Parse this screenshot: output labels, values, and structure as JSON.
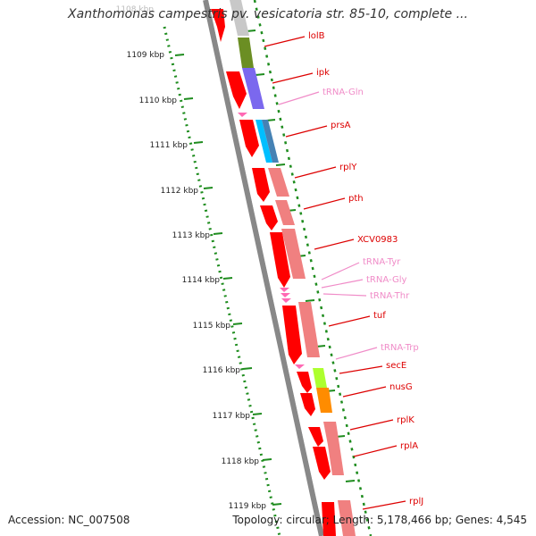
{
  "title": "Xanthomonas campestris pv. vesicatoria str. 85-10, complete ...",
  "footer": {
    "accession": "Accession: NC_007508",
    "summary": "Topology: circular; Length: 5,178,466 bp; Genes: 4,545"
  },
  "colors": {
    "scale_dots": "#1e8c1e",
    "backbone": "#808080",
    "cds_forward": "#ff0000",
    "cds_reverse": "#f08080",
    "gene_label": "#dd0000",
    "trna_label": "#f08cc8"
  },
  "axis": {
    "unit": "kbp",
    "ticks": [
      "1108 kbp",
      "1109 kbp",
      "1110 kbp",
      "1111 kbp",
      "1112 kbp",
      "1113 kbp",
      "1114 kbp",
      "1115 kbp",
      "1116 kbp",
      "1117 kbp",
      "1118 kbp",
      "1119 kbp"
    ]
  },
  "genes": [
    {
      "name": "lolB",
      "kind": "gene"
    },
    {
      "name": "ipk",
      "kind": "gene"
    },
    {
      "name": "tRNA-Gln",
      "kind": "trna"
    },
    {
      "name": "prsA",
      "kind": "gene"
    },
    {
      "name": "rplY",
      "kind": "gene"
    },
    {
      "name": "pth",
      "kind": "gene"
    },
    {
      "name": "XCV0983",
      "kind": "gene"
    },
    {
      "name": "tRNA-Tyr",
      "kind": "trna"
    },
    {
      "name": "tRNA-Gly",
      "kind": "trna"
    },
    {
      "name": "tRNA-Thr",
      "kind": "trna"
    },
    {
      "name": "tuf",
      "kind": "gene"
    },
    {
      "name": "tRNA-Trp",
      "kind": "trna"
    },
    {
      "name": "secE",
      "kind": "gene"
    },
    {
      "name": "nusG",
      "kind": "gene"
    },
    {
      "name": "rplK",
      "kind": "gene"
    },
    {
      "name": "rplA",
      "kind": "gene"
    },
    {
      "name": "rplJ",
      "kind": "gene"
    }
  ]
}
